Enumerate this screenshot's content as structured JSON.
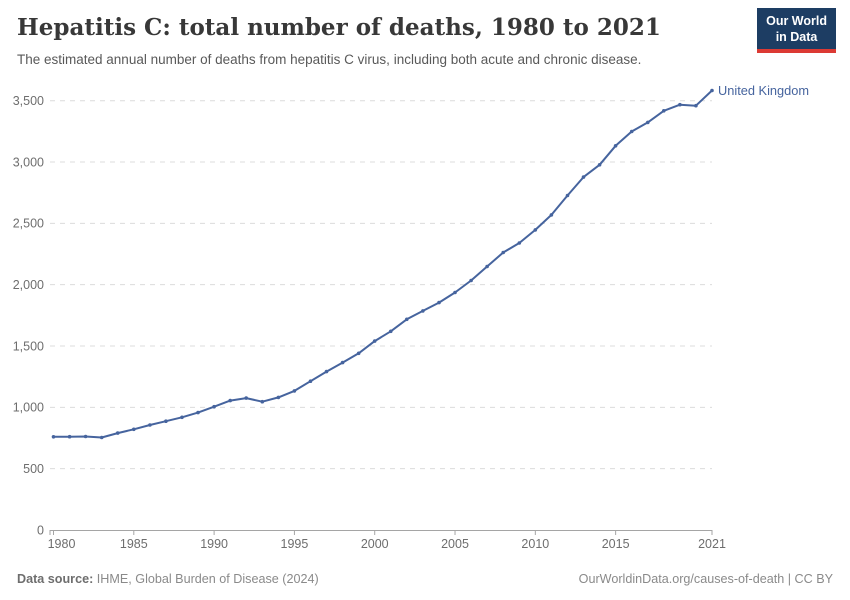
{
  "header": {
    "title": "Hepatitis C: total number of deaths, 1980 to 2021",
    "subtitle": "The estimated annual number of deaths from hepatitis C virus, including both acute and chronic disease.",
    "logo": {
      "line1": "Our World",
      "line2": "in Data"
    }
  },
  "chart_data": {
    "type": "line",
    "title": "Hepatitis C: total number of deaths, 1980 to 2021",
    "xlabel": "",
    "ylabel": "",
    "xlim": [
      1980,
      2021
    ],
    "ylim": [
      0,
      3500
    ],
    "grid": "horizontal-dashed",
    "legend_position": "end-of-line-label",
    "x": [
      1980,
      1981,
      1982,
      1983,
      1984,
      1985,
      1986,
      1987,
      1988,
      1989,
      1990,
      1991,
      1992,
      1993,
      1994,
      1995,
      1996,
      1997,
      1998,
      1999,
      2000,
      2001,
      2002,
      2003,
      2004,
      2005,
      2006,
      2007,
      2008,
      2009,
      2010,
      2011,
      2012,
      2013,
      2014,
      2015,
      2016,
      2017,
      2018,
      2019,
      2020,
      2021
    ],
    "series": [
      {
        "name": "United Kingdom",
        "color": "#46649e",
        "values": [
          760,
          761,
          762,
          754,
          790,
          821,
          856,
          887,
          919,
          957,
          1005,
          1055,
          1075,
          1046,
          1081,
          1134,
          1213,
          1291,
          1365,
          1441,
          1540,
          1620,
          1718,
          1786,
          1854,
          1936,
          2034,
          2148,
          2262,
          2340,
          2447,
          2569,
          2727,
          2877,
          2977,
          3132,
          3249,
          3323,
          3418,
          3467,
          3459,
          3583
        ]
      }
    ],
    "y_ticks": [
      0,
      500,
      1000,
      1500,
      2000,
      2500,
      3000,
      3500
    ],
    "y_tick_labels": [
      "0",
      "500",
      "1,000",
      "1,500",
      "2,000",
      "2,500",
      "3,000",
      "3,500"
    ],
    "x_tick_values": [
      1980,
      1985,
      1990,
      1995,
      2000,
      2005,
      2010,
      2015,
      2021
    ],
    "x_tick_labels": [
      "1980",
      "1985",
      "1990",
      "1995",
      "2000",
      "2005",
      "2010",
      "2015",
      "2021"
    ]
  },
  "footer": {
    "source_label": "Data source:",
    "source_text": " IHME, Global Burden of Disease (2024)",
    "rights": "OurWorldinData.org/causes-of-death | CC BY"
  },
  "colors": {
    "accent_line": "#46649e",
    "logo_bg": "#1d3d63",
    "logo_red": "#dc3a34",
    "grid": "#dcdcdc",
    "axis": "#a5a5a5",
    "tick_text": "#6e6e6e",
    "title_text": "#383838",
    "subtitle_text": "#595959",
    "footer_text": "#8a8a8a"
  }
}
